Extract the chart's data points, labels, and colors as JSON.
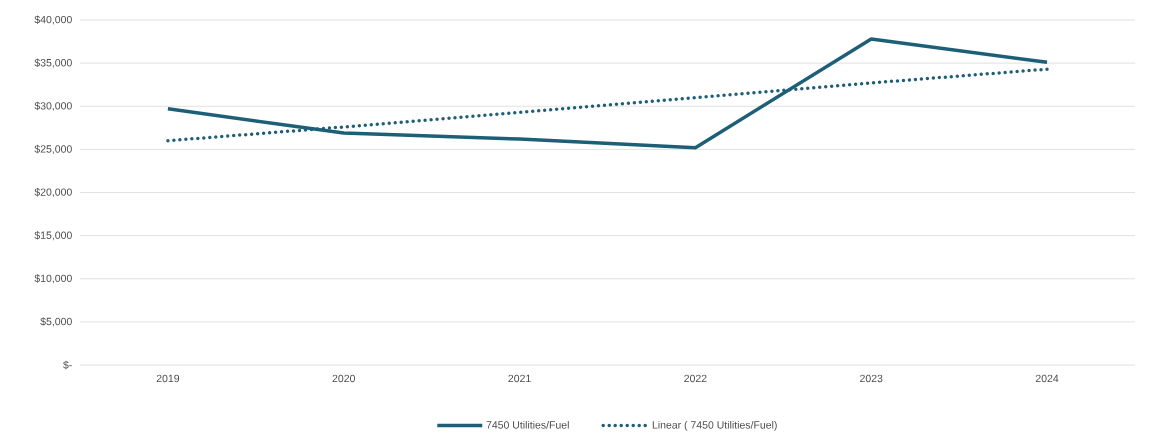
{
  "chart_data": {
    "type": "line",
    "categories": [
      "2019",
      "2020",
      "2021",
      "2022",
      "2023",
      "2024"
    ],
    "series": [
      {
        "name": "7450 Utilities/Fuel",
        "color": "#1e5f78",
        "line_style": "solid",
        "values": [
          29700,
          26900,
          26200,
          25200,
          37800,
          35100
        ]
      },
      {
        "name": "Linear (  7450 Utilities/Fuel)",
        "color": "#1e5f78",
        "line_style": "dotted",
        "values": [
          26000,
          27600,
          29300,
          31000,
          32700,
          34300
        ]
      }
    ],
    "ylim": [
      0,
      40000
    ],
    "yticks": [
      {
        "value": 0,
        "label": "$-"
      },
      {
        "value": 5000,
        "label": "$5,000"
      },
      {
        "value": 10000,
        "label": "$10,000"
      },
      {
        "value": 15000,
        "label": "$15,000"
      },
      {
        "value": 20000,
        "label": "$20,000"
      },
      {
        "value": 25000,
        "label": "$25,000"
      },
      {
        "value": 30000,
        "label": "$30,000"
      },
      {
        "value": 35000,
        "label": "$35,000"
      },
      {
        "value": 40000,
        "label": "$40,000"
      }
    ],
    "grid": "y",
    "legend": "bottom",
    "marker": "none"
  }
}
